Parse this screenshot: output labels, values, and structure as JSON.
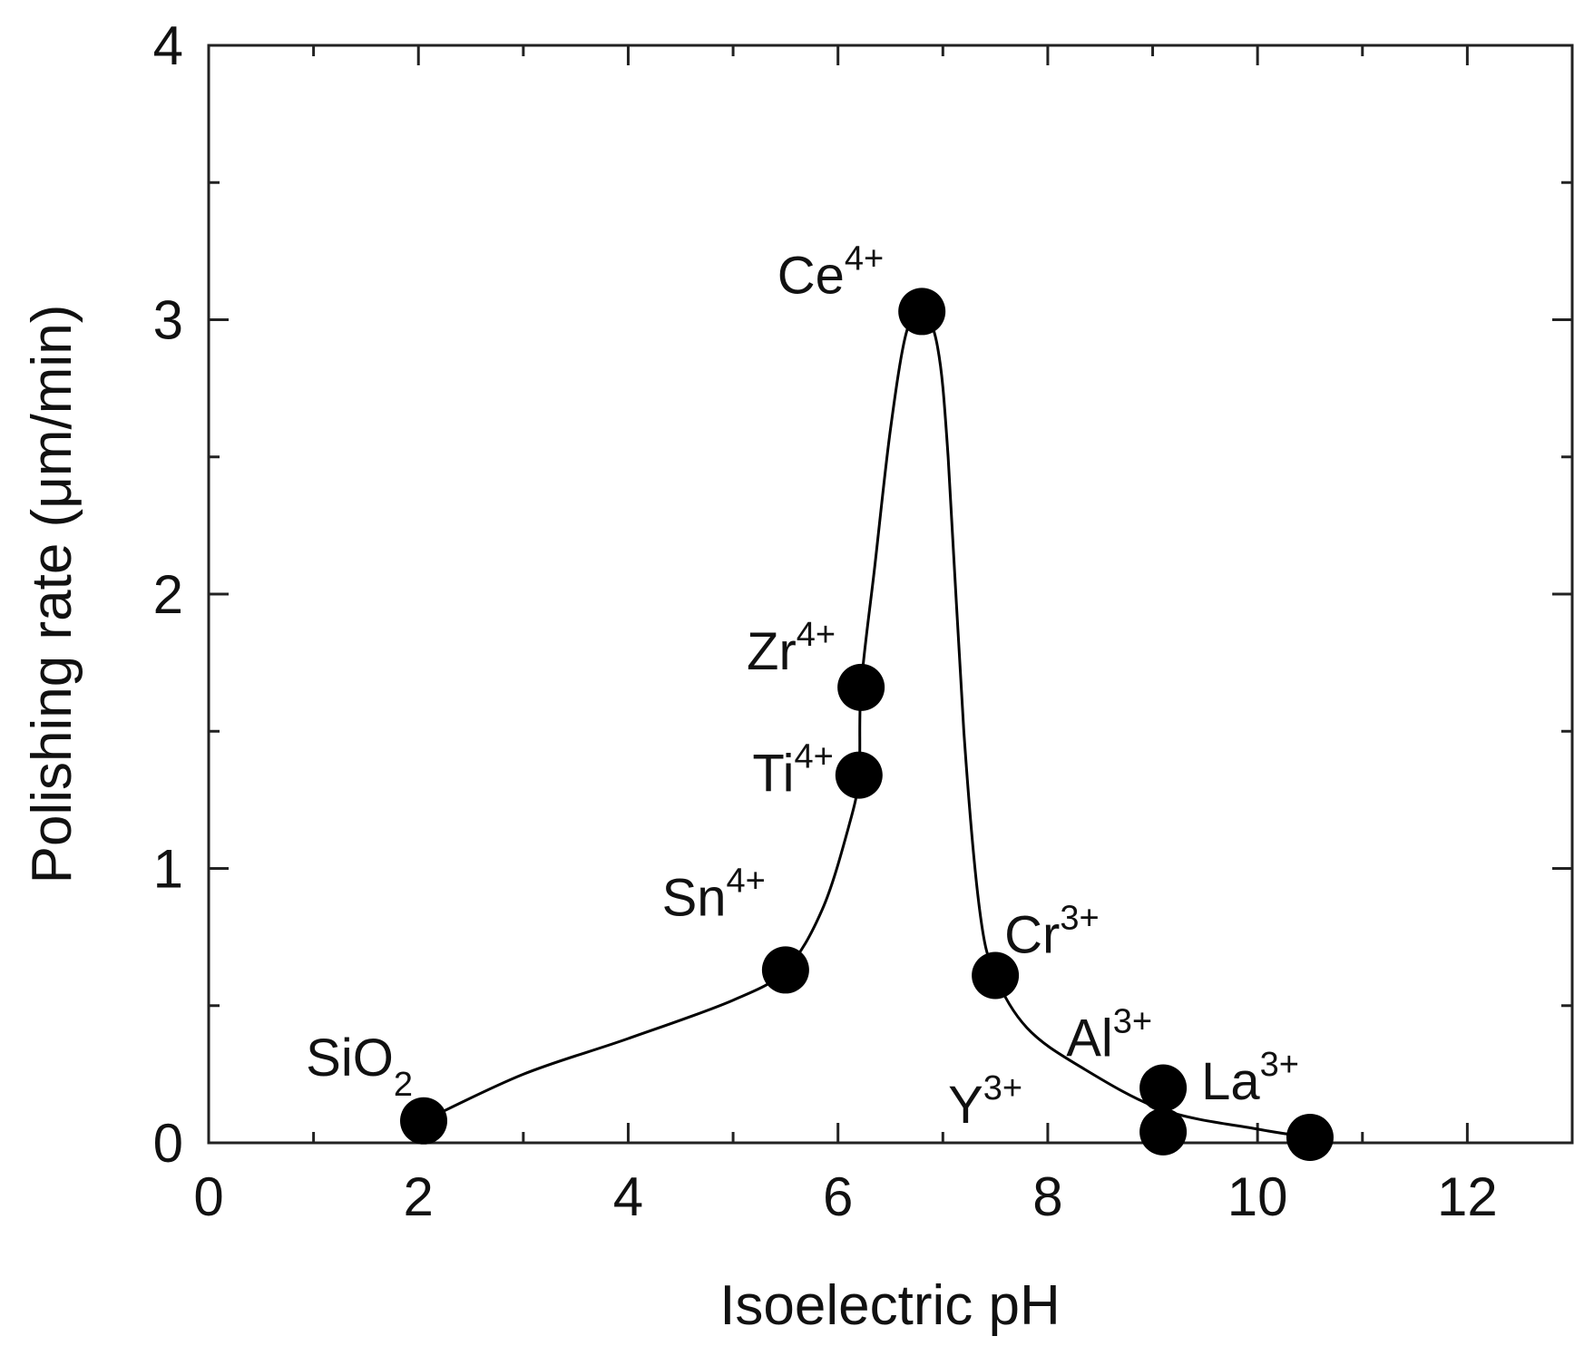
{
  "chart_data": {
    "type": "line",
    "xlabel": "Isoelectric pH",
    "ylabel": "Polishing rate (μm/min)",
    "xlim": [
      0,
      13
    ],
    "ylim": [
      0,
      4
    ],
    "xticks": [
      0,
      2,
      4,
      6,
      8,
      10,
      12
    ],
    "yticks": [
      0,
      1,
      2,
      3,
      4
    ],
    "grid": false,
    "line_color": "#000000",
    "marker_color": "#000000",
    "points": [
      {
        "x": 2.05,
        "y": 0.08,
        "base": "SiO",
        "sub": "2",
        "sup": ""
      },
      {
        "x": 5.5,
        "y": 0.63,
        "base": "Sn",
        "sub": "",
        "sup": "4+"
      },
      {
        "x": 6.2,
        "y": 1.34,
        "base": "Ti",
        "sub": "",
        "sup": "4+"
      },
      {
        "x": 6.22,
        "y": 1.66,
        "base": "Zr",
        "sub": "",
        "sup": "4+"
      },
      {
        "x": 6.8,
        "y": 3.03,
        "base": "Ce",
        "sub": "",
        "sup": "4+"
      },
      {
        "x": 7.5,
        "y": 0.61,
        "base": "Cr",
        "sub": "",
        "sup": "3+"
      },
      {
        "x": 9.1,
        "y": 0.2,
        "base": "Al",
        "sub": "",
        "sup": "3+"
      },
      {
        "x": 9.1,
        "y": 0.04,
        "base": "Y",
        "sub": "",
        "sup": "3+"
      },
      {
        "x": 10.5,
        "y": 0.02,
        "base": "La",
        "sub": "",
        "sup": "3+"
      }
    ],
    "curve": [
      [
        2.05,
        0.08
      ],
      [
        3.0,
        0.25
      ],
      [
        4.0,
        0.38
      ],
      [
        5.0,
        0.52
      ],
      [
        5.5,
        0.63
      ],
      [
        5.85,
        0.85
      ],
      [
        6.1,
        1.15
      ],
      [
        6.2,
        1.34
      ],
      [
        6.22,
        1.66
      ],
      [
        6.35,
        2.1
      ],
      [
        6.5,
        2.6
      ],
      [
        6.65,
        2.95
      ],
      [
        6.8,
        3.03
      ],
      [
        6.95,
        2.9
      ],
      [
        7.05,
        2.5
      ],
      [
        7.2,
        1.5
      ],
      [
        7.35,
        0.85
      ],
      [
        7.5,
        0.61
      ],
      [
        7.8,
        0.42
      ],
      [
        8.3,
        0.28
      ],
      [
        9.1,
        0.12
      ],
      [
        10.0,
        0.05
      ],
      [
        10.5,
        0.02
      ]
    ]
  }
}
